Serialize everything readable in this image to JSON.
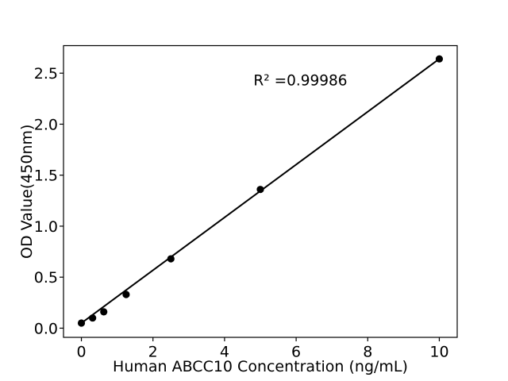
{
  "figure": {
    "background_color": "#ffffff"
  },
  "chart_data": {
    "type": "scatter",
    "title": "",
    "xlabel": "Human ABCC10 Concentration (ng/mL)",
    "ylabel": "OD Value(450nm)",
    "x": [
      0,
      0.313,
      0.625,
      1.25,
      2.5,
      5,
      10
    ],
    "y": [
      0.05,
      0.1,
      0.16,
      0.33,
      0.68,
      1.36,
      2.64
    ],
    "fit_line": {
      "x1": 0,
      "y1": 0.05,
      "x2": 10,
      "y2": 2.64
    },
    "annotation": {
      "text": "R² =0.99986",
      "x": 6.12,
      "y": 2.38
    },
    "xlim": [
      -0.5,
      10.5
    ],
    "ylim": [
      -0.09,
      2.77
    ],
    "xticks": [
      0,
      2,
      4,
      6,
      8,
      10
    ],
    "xtick_labels": [
      "0",
      "2",
      "4",
      "6",
      "8",
      "10"
    ],
    "yticks": [
      0,
      0.5,
      1,
      1.5,
      2,
      2.5
    ],
    "ytick_labels": [
      "0.0",
      "0.5",
      "1.0",
      "1.5",
      "2.0",
      "2.5"
    ],
    "grid": false,
    "legend": null,
    "axis_color": "#000000",
    "marker": {
      "shape": "circle",
      "color": "#000000",
      "radius": 4.6
    },
    "line": {
      "color": "#000000",
      "width": 2
    }
  }
}
